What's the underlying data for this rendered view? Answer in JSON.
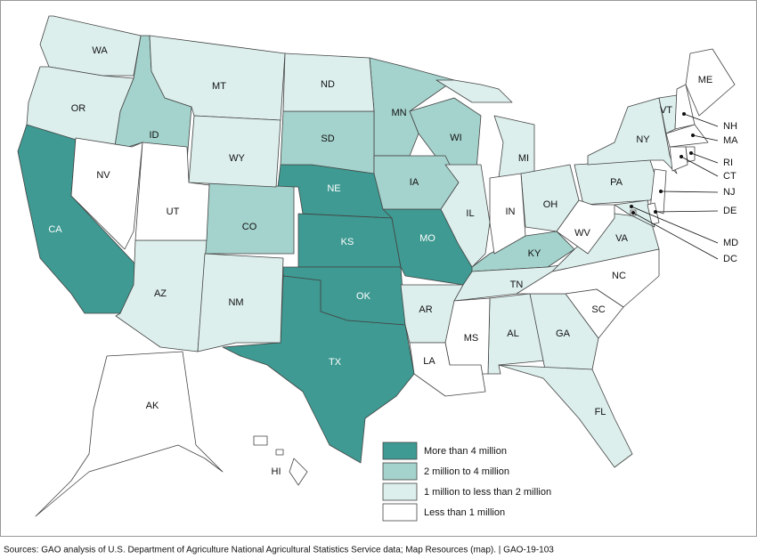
{
  "legend": [
    {
      "label": "More than 4 million",
      "color": "#3e9a92",
      "states": [
        "CA",
        "NE",
        "KS",
        "MO",
        "OK",
        "TX"
      ]
    },
    {
      "label": "2 million to 4 million",
      "color": "#a4d2cc",
      "states": [
        "ID",
        "MN",
        "SD",
        "WI",
        "IA",
        "CO",
        "KY"
      ]
    },
    {
      "label": "1 million to less than 2 million",
      "color": "#dcefec",
      "states": [
        "WA",
        "OR",
        "MT",
        "ND",
        "WY",
        "AZ",
        "NM",
        "IL",
        "MI",
        "OH",
        "PA",
        "NY",
        "AR",
        "TN",
        "AL",
        "GA",
        "FL",
        "VA",
        "VT",
        "MD"
      ]
    },
    {
      "label": "Less than 1 million",
      "color": "#ffffff",
      "states": [
        "NV",
        "UT",
        "IN",
        "WV",
        "NC",
        "SC",
        "MS",
        "LA",
        "AK",
        "HI",
        "ME",
        "NH",
        "MA",
        "RI",
        "CT",
        "NJ",
        "DE",
        "DC"
      ]
    }
  ],
  "source": "Sources: GAO analysis of U.S. Department of Agriculture National Agricultural Statistics Service data; Map Resources (map).  |  GAO-19-103"
}
